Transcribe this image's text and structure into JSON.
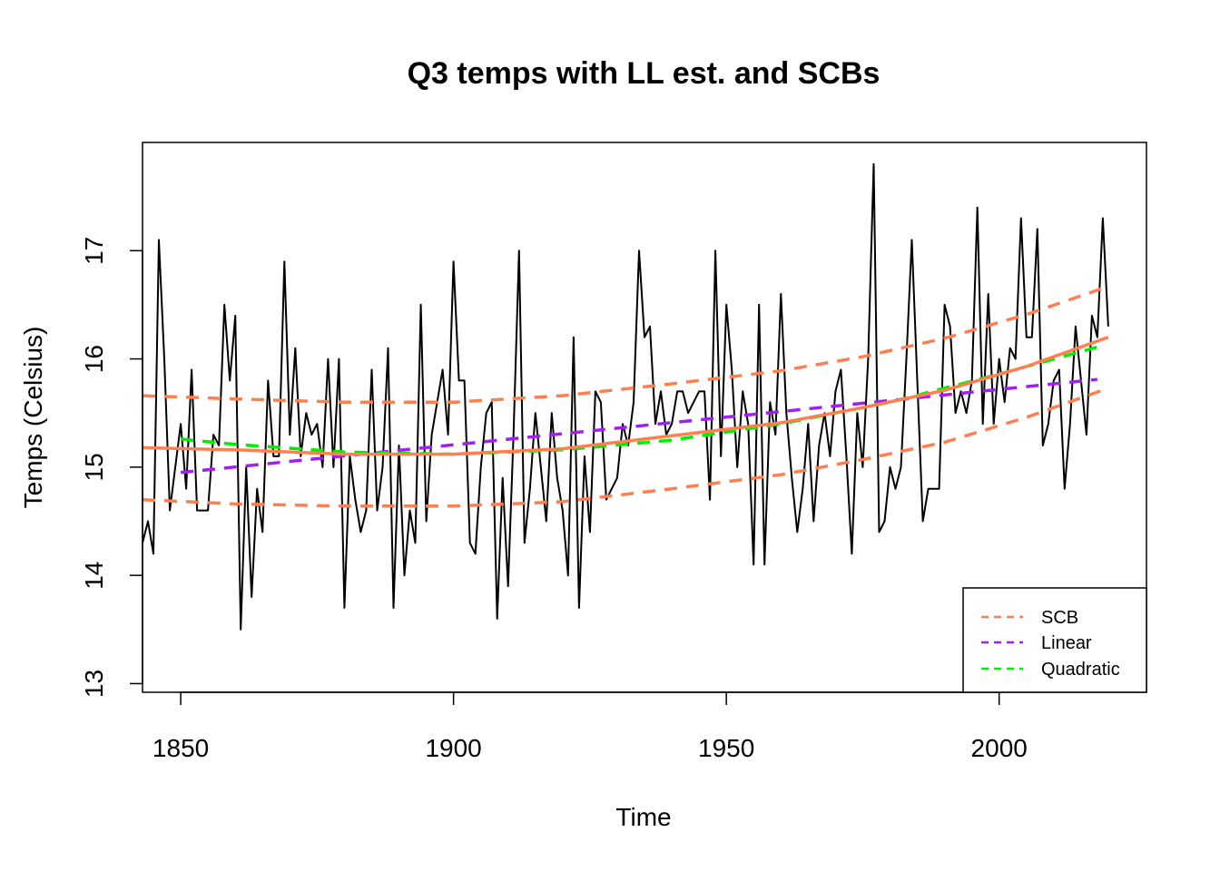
{
  "chart_data": {
    "type": "line",
    "title": "Q3 temps with LL est. and SCBs",
    "xlabel": "Time",
    "ylabel": "Temps (Celsius)",
    "xlim": [
      1843,
      2027
    ],
    "ylim": [
      12.92,
      18.0
    ],
    "x_ticks": [
      1850,
      1900,
      1950,
      2000
    ],
    "y_ticks": [
      13,
      14,
      15,
      16,
      17
    ],
    "grid": false,
    "legend_position": "bottom-right",
    "colors": {
      "observed": "#000000",
      "scb": "#ff7f50",
      "ll_estimate": "#ff7f50",
      "linear": "#a020f0",
      "quadratic": "#00ee00"
    },
    "legend": [
      {
        "label": "SCB",
        "color": "#ff7f50"
      },
      {
        "label": "Linear",
        "color": "#a020f0"
      },
      {
        "label": "Quadratic",
        "color": "#00ee00"
      }
    ],
    "series": [
      {
        "key": "observed",
        "style": "solid-thin",
        "x_start": 1843,
        "y": [
          14.3,
          14.5,
          14.2,
          17.1,
          16.0,
          14.6,
          15.0,
          15.4,
          14.8,
          15.9,
          14.6,
          14.6,
          14.6,
          15.3,
          15.2,
          16.5,
          15.8,
          16.4,
          13.5,
          15.0,
          13.8,
          14.8,
          14.4,
          15.8,
          15.1,
          15.1,
          16.9,
          15.3,
          16.1,
          15.1,
          15.5,
          15.3,
          15.4,
          15.0,
          16.0,
          15.0,
          16.0,
          13.7,
          15.1,
          14.7,
          14.4,
          14.6,
          15.9,
          14.6,
          15.0,
          16.1,
          13.7,
          15.2,
          14.0,
          14.6,
          14.3,
          16.5,
          14.5,
          15.3,
          15.6,
          15.9,
          15.3,
          16.9,
          15.8,
          15.8,
          14.3,
          14.2,
          15.0,
          15.5,
          15.6,
          13.6,
          14.9,
          13.9,
          15.3,
          17.0,
          14.3,
          14.8,
          15.5,
          15.0,
          14.5,
          15.5,
          14.9,
          14.6,
          14.0,
          16.2,
          13.7,
          15.1,
          14.4,
          15.7,
          15.6,
          14.7,
          14.8,
          14.9,
          15.4,
          15.2,
          15.6,
          17.0,
          16.2,
          16.3,
          15.4,
          15.7,
          15.3,
          15.4,
          15.7,
          15.7,
          15.5,
          15.6,
          15.7,
          15.7,
          14.7,
          17.0,
          15.1,
          16.5,
          15.9,
          15.0,
          15.7,
          15.4,
          14.1,
          16.5,
          14.1,
          15.6,
          15.3,
          16.6,
          15.5,
          14.9,
          14.4,
          14.8,
          15.4,
          14.5,
          15.2,
          15.5,
          15.1,
          15.7,
          15.9,
          15.1,
          14.2,
          15.5,
          15.0,
          16.0,
          17.8,
          14.4,
          14.5,
          15.0,
          14.8,
          15.0,
          16.0,
          17.1,
          15.8,
          14.5,
          14.8,
          14.8,
          14.8,
          16.5,
          16.3,
          15.5,
          15.7,
          15.5,
          15.8,
          17.4,
          15.4,
          16.6,
          15.4,
          16.0,
          15.6,
          16.1,
          16.0,
          17.3,
          16.2,
          16.2,
          17.2,
          15.2,
          15.4,
          15.8,
          15.9,
          14.8,
          15.4,
          16.3,
          15.8,
          15.3,
          16.4,
          16.2,
          17.3,
          16.3
        ]
      },
      {
        "key": "scb_upper",
        "style": "dashed-thick",
        "legend": "SCB",
        "x": [
          1843,
          1860,
          1880,
          1900,
          1920,
          1940,
          1960,
          1975,
          1990,
          2005,
          2020
        ],
        "y": [
          15.66,
          15.63,
          15.6,
          15.6,
          15.66,
          15.77,
          15.89,
          16.02,
          16.19,
          16.41,
          16.67
        ]
      },
      {
        "key": "scb_lower",
        "style": "dashed-thick",
        "legend": "SCB",
        "x": [
          1843,
          1860,
          1880,
          1900,
          1920,
          1940,
          1960,
          1975,
          1990,
          2005,
          2020
        ],
        "y": [
          14.7,
          14.66,
          14.64,
          14.64,
          14.68,
          14.8,
          14.93,
          15.07,
          15.23,
          15.46,
          15.73
        ]
      },
      {
        "key": "ll_estimate",
        "style": "solid-thick",
        "x": [
          1843,
          1860,
          1880,
          1900,
          1920,
          1940,
          1960,
          1975,
          1990,
          2005,
          2020
        ],
        "y": [
          15.18,
          15.16,
          15.12,
          15.12,
          15.17,
          15.29,
          15.41,
          15.55,
          15.71,
          15.93,
          16.2
        ]
      },
      {
        "key": "linear",
        "style": "dashed-thick",
        "legend": "Linear",
        "x": [
          1850,
          2018
        ],
        "y": [
          14.95,
          15.81
        ]
      },
      {
        "key": "quadratic",
        "style": "dashed-thick",
        "legend": "Quadratic",
        "x": [
          1850,
          1860,
          1880,
          1900,
          1920,
          1940,
          1960,
          1980,
          2000,
          2018
        ],
        "y": [
          15.26,
          15.21,
          15.14,
          15.12,
          15.16,
          15.25,
          15.4,
          15.6,
          15.86,
          16.11
        ]
      }
    ]
  }
}
